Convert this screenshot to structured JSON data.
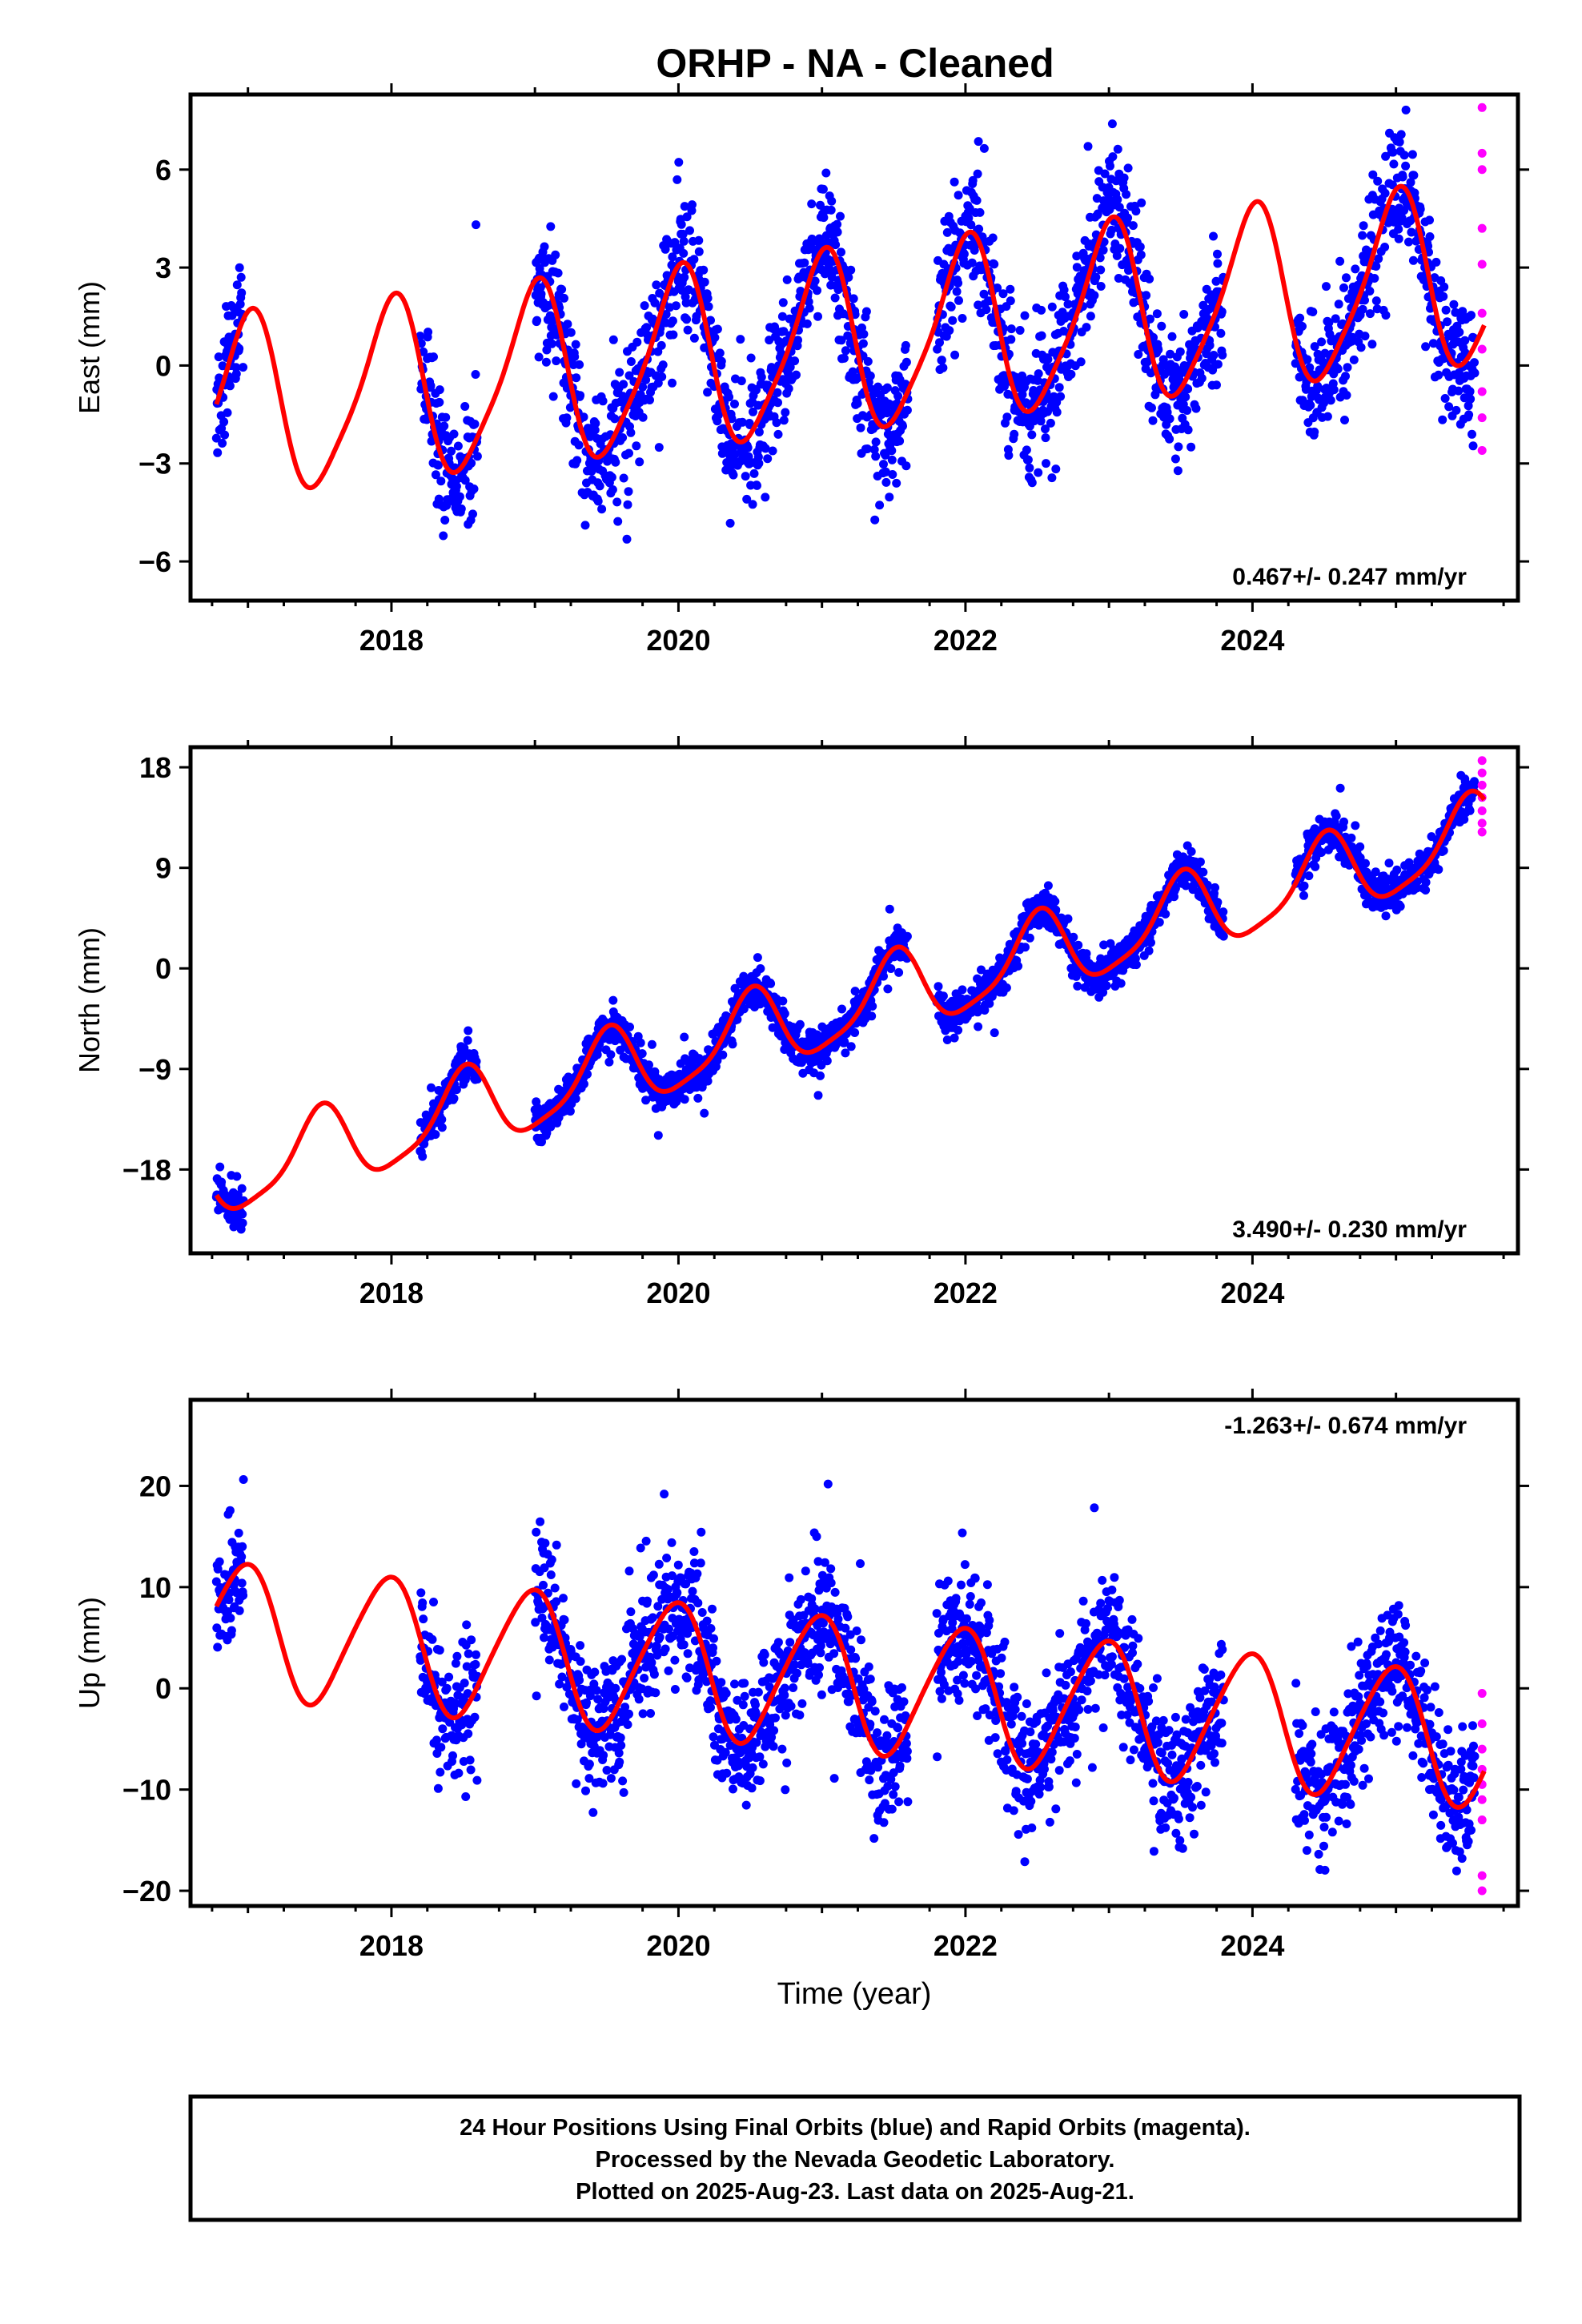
{
  "title": "ORHP  - NA - Cleaned",
  "footer": {
    "lines": [
      "24 Hour Positions Using Final Orbits (blue) and Rapid Orbits (magenta).",
      "Processed by the Nevada Geodetic Laboratory.",
      "Plotted on 2025-Aug-23. Last data on 2025-Aug-21."
    ]
  },
  "colors": {
    "final_orbits": "#0000ff",
    "rapid_orbits": "#ff00ff",
    "model_fit": "#ff0000",
    "frame": "#000000"
  },
  "chart_data": [
    {
      "type": "scatter",
      "ylabel": "East (mm)",
      "xlabel": "",
      "rate": "0.467+/- 0.247 mm/yr",
      "rate_position": "bottom-right",
      "xlim": [
        2016.6,
        2025.85
      ],
      "ylim": [
        -7.2,
        8.3
      ],
      "xticks": [
        2018,
        2020,
        2022,
        2024
      ],
      "yticks": [
        -6,
        -3,
        0,
        3,
        6
      ],
      "ytick_labels": [
        "−6",
        "−3",
        "0",
        "3",
        "6"
      ],
      "model": {
        "offset": -1.4,
        "trend": 0.467,
        "annual_amp": 2.7,
        "annual_phase": 1.6,
        "semi_amp": 0.5,
        "semi_phase": 0.5
      },
      "data_segments": [
        [
          2016.78,
          2016.97
        ],
        [
          2018.2,
          2018.6
        ],
        [
          2019.0,
          2021.6
        ],
        [
          2021.8,
          2023.8
        ],
        [
          2024.3,
          2025.55
        ]
      ],
      "rapid_x": 2025.6,
      "rapid_values": [
        7.9,
        6.5,
        6.0,
        4.2,
        3.1,
        1.6,
        0.5,
        -0.8,
        -1.6,
        -2.6
      ],
      "scatter_sd": 1.0
    },
    {
      "type": "scatter",
      "ylabel": "North (mm)",
      "xlabel": "",
      "rate": "3.490+/- 0.230 mm/yr",
      "rate_position": "bottom-right",
      "xlim": [
        2016.6,
        2025.85
      ],
      "ylim": [
        -25.5,
        19.8
      ],
      "xticks": [
        2018,
        2020,
        2022,
        2024
      ],
      "yticks": [
        -18,
        -9,
        0,
        9,
        18
      ],
      "ytick_labels": [
        "−18",
        "−9",
        "0",
        "9",
        "18"
      ],
      "model": {
        "offset": -19.0,
        "trend": 3.49,
        "annual_amp": 3.5,
        "annual_phase": 4.7,
        "semi_amp": 0.8,
        "semi_phase": 1.0
      },
      "data_segments": [
        [
          2016.78,
          2016.97
        ],
        [
          2018.2,
          2018.6
        ],
        [
          2019.0,
          2021.6
        ],
        [
          2021.8,
          2023.8
        ],
        [
          2024.3,
          2025.55
        ]
      ],
      "rapid_x": 2025.6,
      "rapid_values": [
        18.6,
        17.5,
        16.4,
        15.3,
        14.1,
        13.0,
        12.2
      ],
      "scatter_sd": 0.9
    },
    {
      "type": "scatter",
      "ylabel": "Up (mm)",
      "xlabel": "Time (year)",
      "rate": "-1.263+/- 0.674 mm/yr",
      "rate_position": "top-right",
      "xlim": [
        2016.6,
        2025.85
      ],
      "ylim": [
        -21.5,
        28.5
      ],
      "xticks": [
        2018,
        2020,
        2022,
        2024
      ],
      "yticks": [
        -20,
        -10,
        0,
        10,
        20
      ],
      "ytick_labels": [
        "−20",
        "−10",
        "0",
        "10",
        "20"
      ],
      "model": {
        "offset": 6.0,
        "trend": -1.263,
        "annual_amp": 6.5,
        "annual_phase": 1.8,
        "semi_amp": 0.8,
        "semi_phase": 0.3
      },
      "data_segments": [
        [
          2016.78,
          2016.97
        ],
        [
          2018.2,
          2018.6
        ],
        [
          2019.0,
          2021.6
        ],
        [
          2021.8,
          2023.8
        ],
        [
          2024.3,
          2025.55
        ]
      ],
      "rapid_x": 2025.6,
      "rapid_values": [
        -0.5,
        -3.5,
        -6.0,
        -8.0,
        -9.5,
        -11.0,
        -13.0,
        -18.5,
        -20.0
      ],
      "scatter_sd": 3.3
    }
  ]
}
